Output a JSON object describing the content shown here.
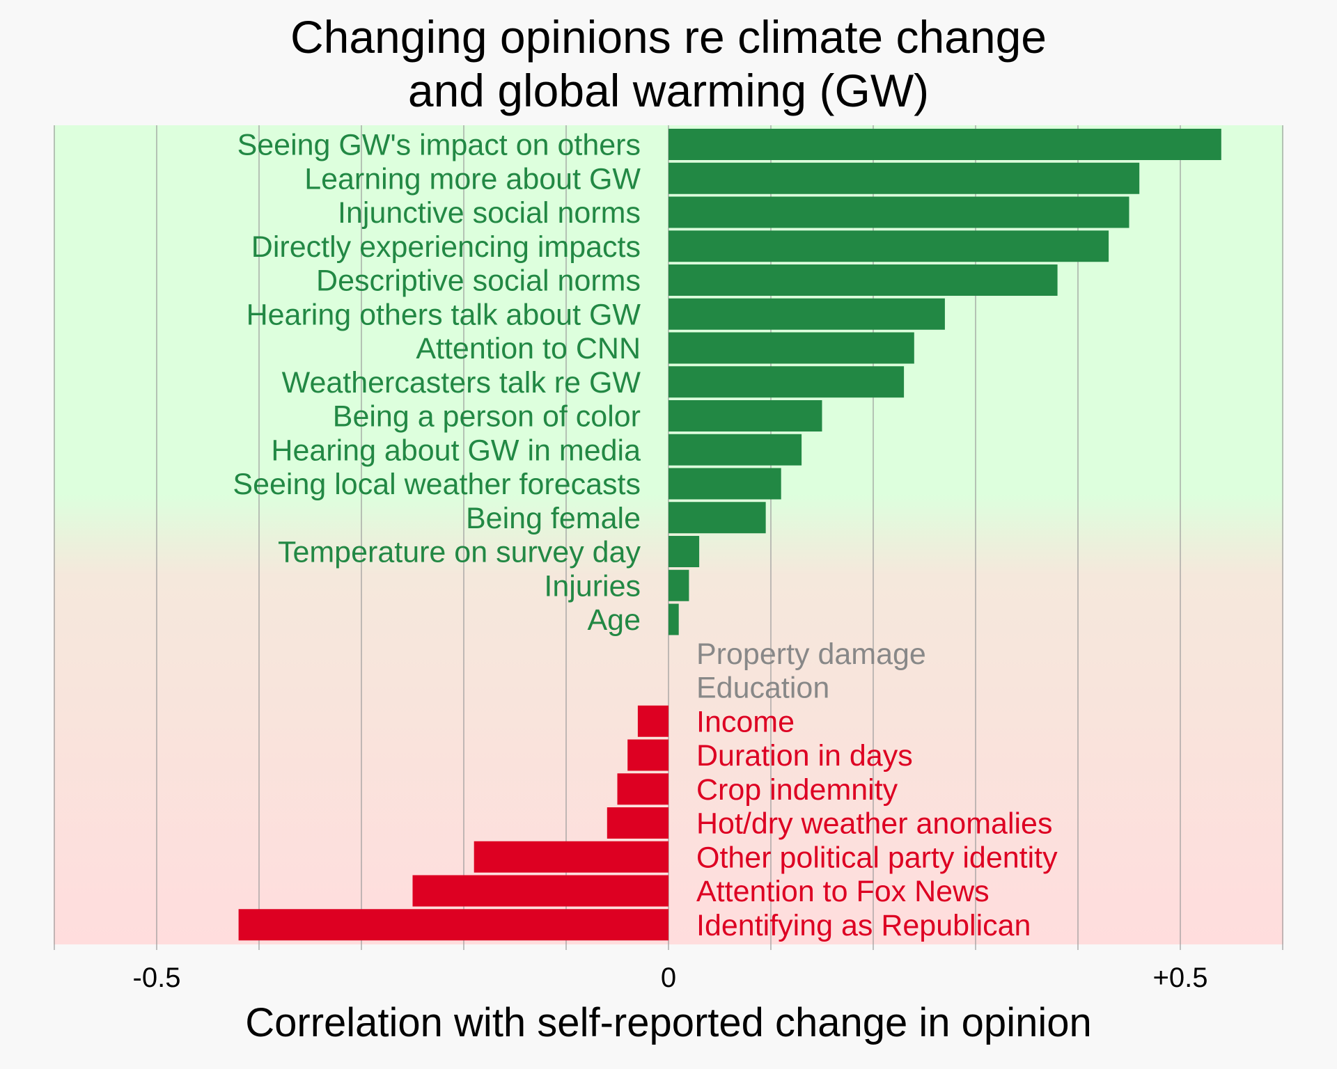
{
  "chart_data": {
    "type": "bar",
    "orientation": "horizontal",
    "title_lines": [
      "Changing opinions re climate change",
      "and global warming (GW)"
    ],
    "xlabel": "Correlation with self-reported change in opinion",
    "ylabel": "",
    "xlim": [
      -0.6,
      0.6
    ],
    "xticks": [
      {
        "value": -0.5,
        "label": "-0.5"
      },
      {
        "value": 0,
        "label": "0"
      },
      {
        "value": 0.5,
        "label": "+0.5"
      }
    ],
    "grid": true,
    "background": "vertical gradient from green (top) to red (bottom)",
    "colors": {
      "positive": "#228844",
      "negative": "#dd0022",
      "neutral": "#888888",
      "background_top": "#ddffdd",
      "background_bottom": "#ffdddd",
      "gridline": "#999999"
    },
    "categories": [
      "Seeing GW's impact on others",
      "Learning more about GW",
      "Injunctive social norms",
      "Directly experiencing impacts",
      "Descriptive social norms",
      "Hearing others talk about GW",
      "Attention to CNN",
      "Weathercasters talk re GW",
      "Being a person of color",
      "Hearing about GW in media",
      "Seeing local weather forecasts",
      "Being female",
      "Temperature on survey day",
      "Injuries",
      "Age",
      "Property damage",
      "Education",
      "Income",
      "Duration in days",
      "Crop indemnity",
      "Hot/dry weather anomalies",
      "Other political party identity",
      "Attention to Fox News",
      "Identifying as Republican"
    ],
    "values": [
      0.54,
      0.46,
      0.45,
      0.43,
      0.38,
      0.27,
      0.24,
      0.23,
      0.15,
      0.13,
      0.11,
      0.095,
      0.03,
      0.02,
      0.01,
      0,
      0,
      -0.03,
      -0.04,
      -0.05,
      -0.06,
      -0.19,
      -0.25,
      -0.42
    ]
  }
}
